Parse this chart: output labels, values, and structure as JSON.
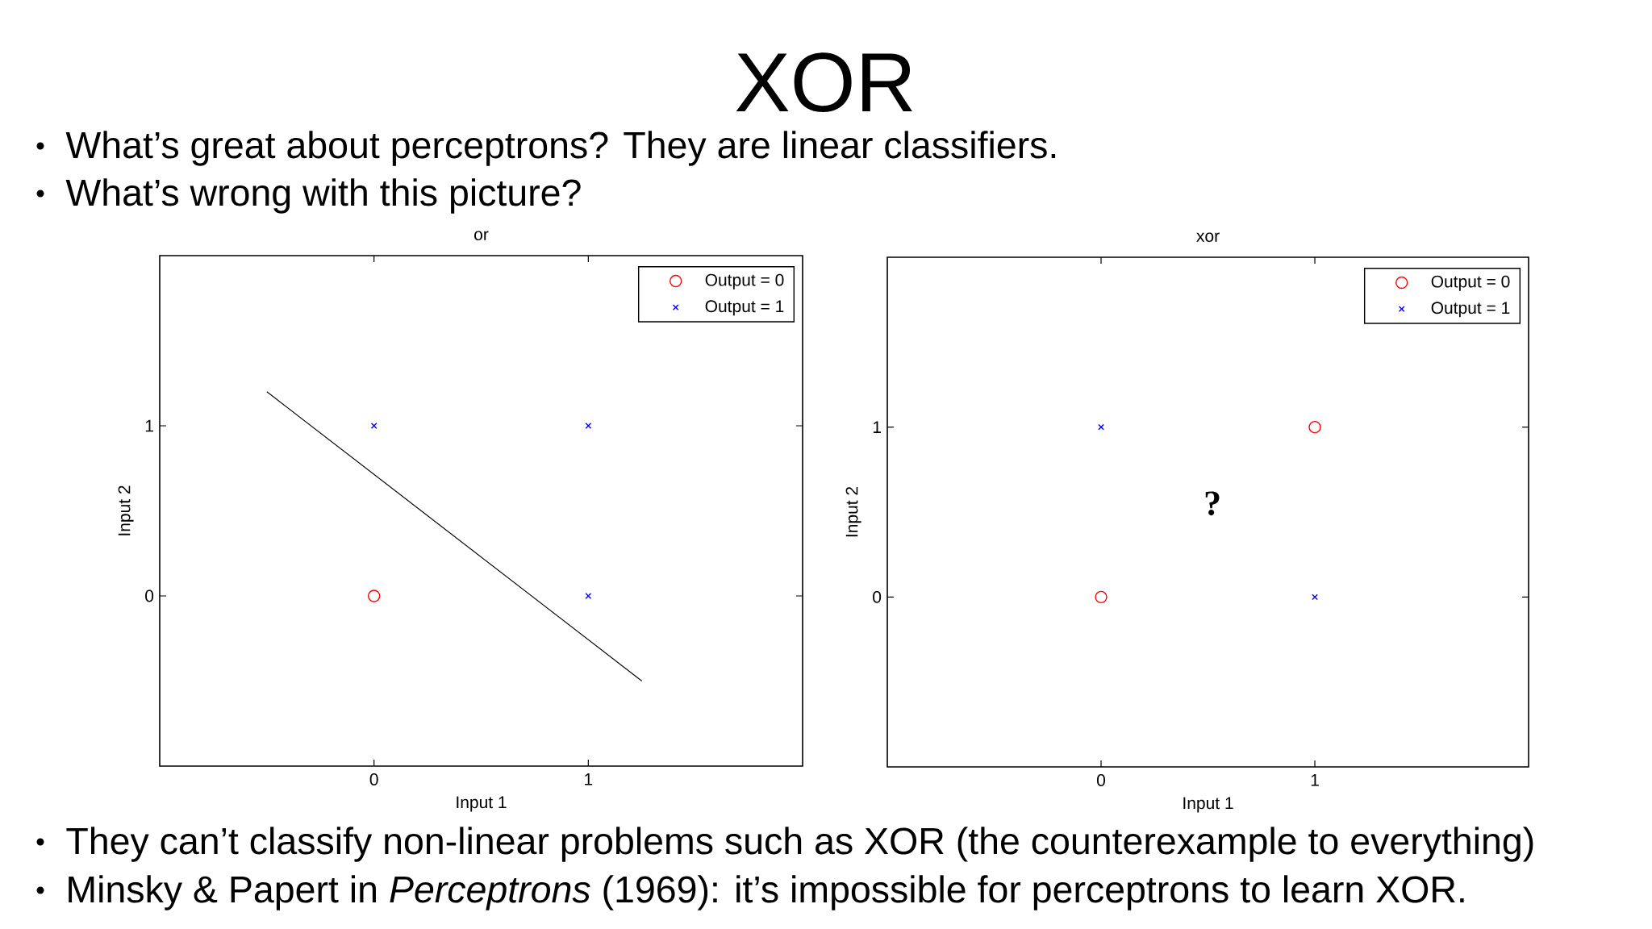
{
  "chart_data": [
    {
      "type": "scatter",
      "title": "or",
      "xlabel": "Input 1",
      "ylabel": "Input 2",
      "xlim": [
        -1,
        2
      ],
      "ylim": [
        -1,
        2
      ],
      "xticks": [
        0,
        1
      ],
      "yticks": [
        0,
        1
      ],
      "legend": "top right",
      "series": [
        {
          "name": "Output = 0",
          "color": "#ff0000",
          "marker": "circle",
          "x": [
            0
          ],
          "values": [
            0
          ]
        },
        {
          "name": "Output = 1",
          "color": "#0000ff",
          "marker": "cross",
          "x": [
            0,
            1,
            1
          ],
          "values": [
            1,
            1,
            0
          ]
        },
        {
          "type": "line",
          "color": "#000000",
          "x": [
            -0.5,
            1.25
          ],
          "values": [
            1.2,
            -0.5
          ]
        }
      ],
      "annotations": [
        "XOR",
        "What’s great about perceptrons? They are linear classifiers.",
        "What’s wrong with this picture?",
        "They can’t classify non-linear problems such as XOR (the counterexample to everything)",
        "Minsky & Papert in *Perceptrons* (1969): it’s impossible for perceptrons to learn XOR."
      ]
    },
    {
      "type": "scatter",
      "title": "xor",
      "xlabel": "Input 1",
      "ylabel": "Input 2",
      "xlim": [
        -1,
        2
      ],
      "ylim": [
        -1,
        2
      ],
      "xticks": [
        0,
        1
      ],
      "yticks": [
        0,
        1
      ],
      "legend": "top right",
      "series": [
        {
          "name": "Output = 0",
          "color": "#ff0000",
          "marker": "circle",
          "x": [
            0,
            1
          ],
          "values": [
            0,
            1
          ]
        },
        {
          "name": "Output = 1",
          "color": "#0000ff",
          "marker": "cross",
          "x": [
            0,
            1
          ],
          "values": [
            1,
            0
          ]
        }
      ],
      "annotations": [
        "?"
      ]
    }
  ]
}
